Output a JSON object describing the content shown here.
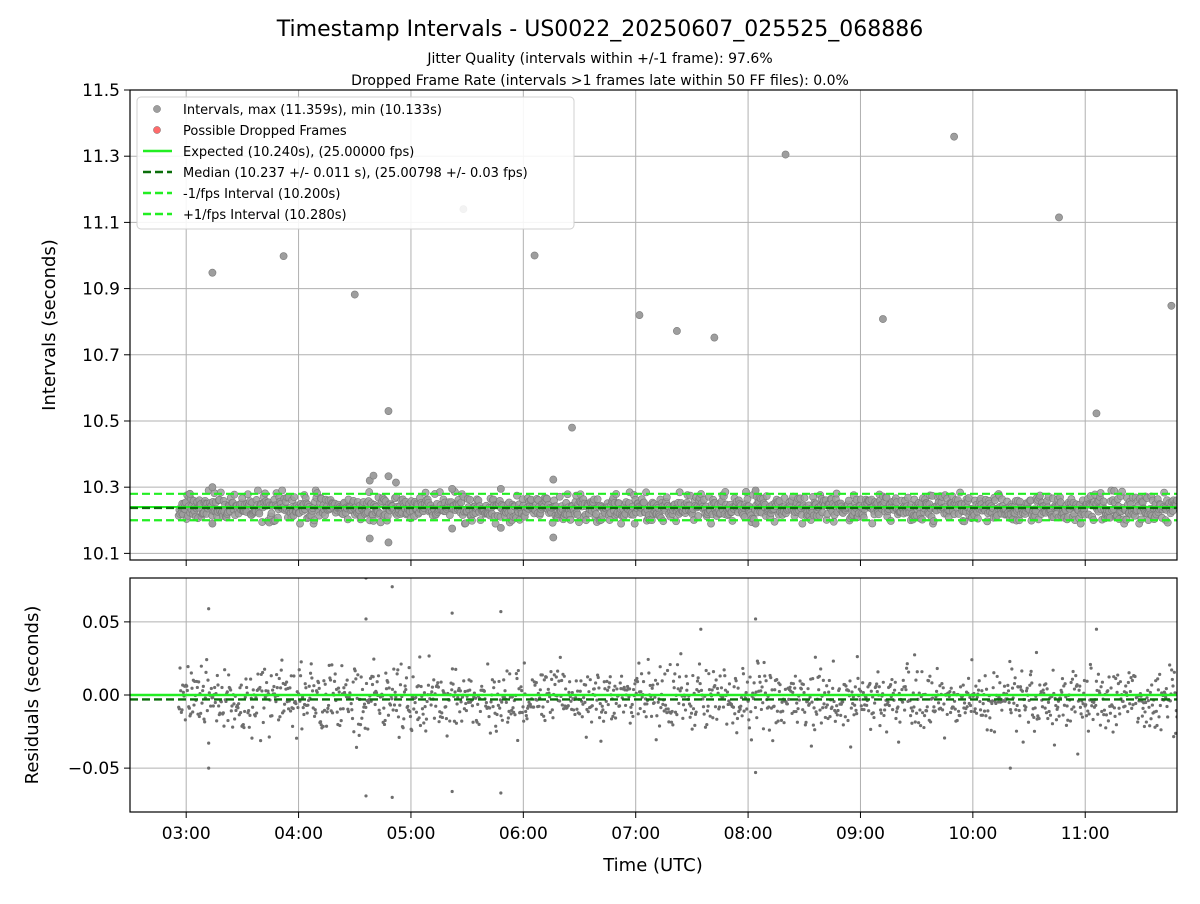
{
  "chart_data": {
    "title": "Timestamp Intervals - US0022_20250607_025525_068886",
    "subtitle_1": "Jitter Quality (intervals within +/-1 frame): 97.6%",
    "subtitle_2": "Dropped Frame Rate (intervals >1 frames late within 50 FF files): 0.0%",
    "xlabel": "Time (UTC)",
    "x_ticks": [
      "03:00",
      "04:00",
      "05:00",
      "06:00",
      "07:00",
      "08:00",
      "09:00",
      "10:00",
      "11:00"
    ],
    "xlim": [
      "02:30",
      "11:49"
    ],
    "grid": true,
    "top_panel": {
      "type": "scatter",
      "ylabel": "Intervals (seconds)",
      "ylim": [
        10.08,
        11.5
      ],
      "y_ticks": [
        "10.1",
        "10.3",
        "10.5",
        "10.7",
        "10.9",
        "11.1",
        "11.3",
        "11.5"
      ],
      "legend_position": "upper-left",
      "legend": [
        {
          "label": "Intervals, max (11.359s), min (10.133s)",
          "marker": "circle",
          "color": "#9e9e9e"
        },
        {
          "label": "Possible Dropped Frames",
          "marker": "circle",
          "color": "#ff6b6b"
        },
        {
          "label": "Expected (10.240s), (25.00000 fps)",
          "marker": "solid-line",
          "color": "#22ee22"
        },
        {
          "label": "Median (10.237 +/- 0.011 s), (25.00798 +/- 0.03 fps)",
          "marker": "dashed-line",
          "color": "#0a6e0a"
        },
        {
          "label": "-1/fps Interval (10.200s)",
          "marker": "dashed-line",
          "color": "#22ee22"
        },
        {
          "label": "+1/fps Interval (10.280s)",
          "marker": "dashed-line",
          "color": "#22ee22"
        }
      ],
      "reference_lines": [
        {
          "name": "Expected",
          "y": 10.24,
          "style": "solid",
          "color": "#22ee22"
        },
        {
          "name": "Median",
          "y": 10.237,
          "style": "dashed",
          "color": "#0a6e0a"
        },
        {
          "name": "-1/fps Interval",
          "y": 10.2,
          "style": "dashed",
          "color": "#22ee22"
        },
        {
          "name": "+1/fps Interval",
          "y": 10.28,
          "style": "dashed",
          "color": "#22ee22"
        }
      ],
      "series": [
        {
          "color": "#9e9e9e",
          "note_band": "dense band of intervals between 10.19 and 10.29 from 02:56 to 11:49",
          "outliers": [
            {
              "x": "03:02",
              "y": 10.28
            },
            {
              "x": "03:14",
              "y": 10.3
            },
            {
              "x": "03:14",
              "y": 10.19
            },
            {
              "x": "03:14",
              "y": 10.948
            },
            {
              "x": "03:52",
              "y": 10.998
            },
            {
              "x": "04:30",
              "y": 10.882
            },
            {
              "x": "04:38",
              "y": 10.32
            },
            {
              "x": "04:38",
              "y": 10.145
            },
            {
              "x": "04:40",
              "y": 10.335
            },
            {
              "x": "04:48",
              "y": 10.53
            },
            {
              "x": "04:48",
              "y": 10.333
            },
            {
              "x": "04:48",
              "y": 10.133
            },
            {
              "x": "04:52",
              "y": 10.314
            },
            {
              "x": "05:22",
              "y": 10.295
            },
            {
              "x": "05:22",
              "y": 10.175
            },
            {
              "x": "05:28",
              "y": 11.14
            },
            {
              "x": "05:48",
              "y": 10.295
            },
            {
              "x": "05:48",
              "y": 10.177
            },
            {
              "x": "06:06",
              "y": 11.0
            },
            {
              "x": "06:16",
              "y": 10.323
            },
            {
              "x": "06:16",
              "y": 10.148
            },
            {
              "x": "06:26",
              "y": 10.48
            },
            {
              "x": "07:02",
              "y": 10.82
            },
            {
              "x": "07:22",
              "y": 10.772
            },
            {
              "x": "07:42",
              "y": 10.752
            },
            {
              "x": "08:04",
              "y": 10.29
            },
            {
              "x": "08:04",
              "y": 10.19
            },
            {
              "x": "08:20",
              "y": 11.305
            },
            {
              "x": "09:12",
              "y": 10.808
            },
            {
              "x": "09:50",
              "y": 11.359
            },
            {
              "x": "10:46",
              "y": 11.115
            },
            {
              "x": "11:06",
              "y": 10.523
            },
            {
              "x": "11:46",
              "y": 10.848
            }
          ]
        }
      ]
    },
    "bottom_panel": {
      "type": "scatter",
      "ylabel": "Residuals (seconds)",
      "ylim": [
        -0.08,
        0.08
      ],
      "y_ticks": [
        "−0.05",
        "0.00",
        "0.05"
      ],
      "reference_lines": [
        {
          "y": 0.0,
          "style": "solid",
          "color": "#22ee22"
        },
        {
          "y": -0.003,
          "style": "dashed",
          "color": "#0a6e0a"
        }
      ],
      "series": [
        {
          "color": "#6e6e6e",
          "note_band": "dense residual scatter mostly between -0.03 and +0.03 across the full time range",
          "outliers": [
            {
              "x": "03:12",
              "y": 0.059
            },
            {
              "x": "03:12",
              "y": -0.05
            },
            {
              "x": "04:36",
              "y": 0.08
            },
            {
              "x": "04:36",
              "y": 0.052
            },
            {
              "x": "04:36",
              "y": -0.069
            },
            {
              "x": "04:50",
              "y": 0.074
            },
            {
              "x": "04:50",
              "y": -0.07
            },
            {
              "x": "05:22",
              "y": 0.056
            },
            {
              "x": "05:22",
              "y": -0.066
            },
            {
              "x": "05:48",
              "y": 0.057
            },
            {
              "x": "05:48",
              "y": -0.067
            },
            {
              "x": "08:04",
              "y": 0.052
            },
            {
              "x": "08:04",
              "y": -0.053
            },
            {
              "x": "10:20",
              "y": -0.05
            },
            {
              "x": "11:06",
              "y": 0.045
            }
          ]
        }
      ]
    }
  }
}
